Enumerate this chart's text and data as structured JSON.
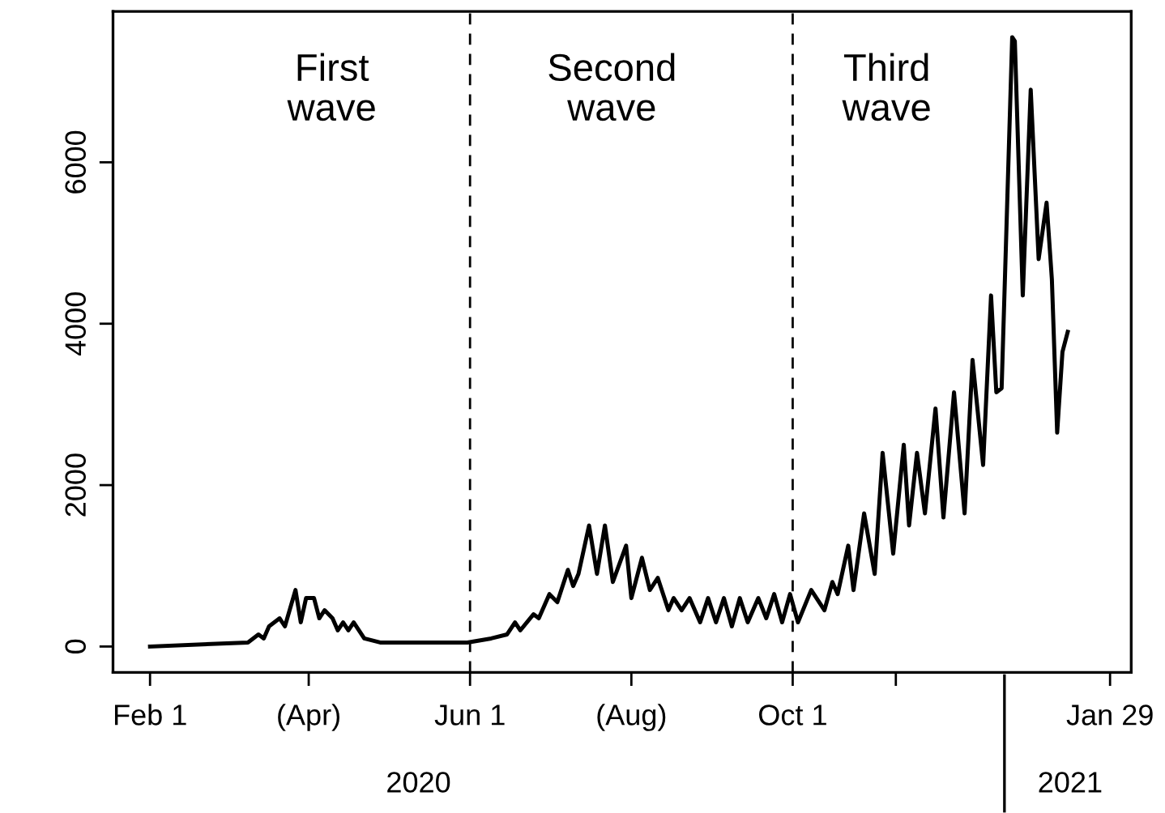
{
  "chart_data": {
    "type": "line",
    "color": "#000000",
    "line_style": "solid",
    "marker": "none",
    "grid": false,
    "legend": false,
    "x": [
      "2020-02-01",
      "2020-03-09",
      "2020-03-13",
      "2020-03-15",
      "2020-03-17",
      "2020-03-21",
      "2020-03-23",
      "2020-03-27",
      "2020-03-29",
      "2020-03-31",
      "2020-04-03",
      "2020-04-05",
      "2020-04-07",
      "2020-04-10",
      "2020-04-12",
      "2020-04-14",
      "2020-04-16",
      "2020-04-18",
      "2020-04-22",
      "2020-04-28",
      "2020-05-19",
      "2020-05-31",
      "2020-06-09",
      "2020-06-15",
      "2020-06-18",
      "2020-06-20",
      "2020-06-25",
      "2020-06-27",
      "2020-07-01",
      "2020-07-04",
      "2020-07-08",
      "2020-07-10",
      "2020-07-12",
      "2020-07-16",
      "2020-07-19",
      "2020-07-22",
      "2020-07-25",
      "2020-07-30",
      "2020-08-01",
      "2020-08-05",
      "2020-08-08",
      "2020-08-11",
      "2020-08-15",
      "2020-08-17",
      "2020-08-20",
      "2020-08-23",
      "2020-08-27",
      "2020-08-30",
      "2020-09-02",
      "2020-09-05",
      "2020-09-08",
      "2020-09-11",
      "2020-09-14",
      "2020-09-18",
      "2020-09-21",
      "2020-09-24",
      "2020-09-27",
      "2020-09-30",
      "2020-10-03",
      "2020-10-08",
      "2020-10-13",
      "2020-10-16",
      "2020-10-18",
      "2020-10-22",
      "2020-10-24",
      "2020-10-28",
      "2020-11-01",
      "2020-11-04",
      "2020-11-08",
      "2020-11-12",
      "2020-11-14",
      "2020-11-17",
      "2020-11-20",
      "2020-11-24",
      "2020-11-27",
      "2020-12-01",
      "2020-12-05",
      "2020-12-08",
      "2020-12-12",
      "2020-12-15",
      "2020-12-17",
      "2020-12-19",
      "2020-12-23",
      "2020-12-24",
      "2020-12-27",
      "2020-12-30",
      "2021-01-02",
      "2021-01-05",
      "2021-01-07",
      "2021-01-09",
      "2021-01-11",
      "2021-01-13"
    ],
    "values": [
      0,
      50,
      150,
      100,
      250,
      350,
      250,
      700,
      300,
      600,
      600,
      350,
      450,
      350,
      200,
      300,
      200,
      300,
      100,
      50,
      50,
      50,
      100,
      150,
      300,
      200,
      400,
      350,
      650,
      550,
      950,
      750,
      900,
      1500,
      900,
      1500,
      800,
      1250,
      600,
      1100,
      700,
      850,
      450,
      600,
      450,
      600,
      300,
      600,
      300,
      600,
      250,
      600,
      300,
      600,
      350,
      650,
      300,
      650,
      300,
      700,
      450,
      800,
      650,
      1250,
      700,
      1650,
      900,
      2400,
      1150,
      2500,
      1500,
      2400,
      1650,
      2950,
      1600,
      3150,
      1650,
      3550,
      2250,
      4350,
      3150,
      3200,
      7550,
      7500,
      4350,
      6900,
      4800,
      5500,
      4550,
      2650,
      3650,
      3900
    ],
    "xlim": [
      "2020-01-18",
      "2021-02-06"
    ],
    "xticks": [
      {
        "value": "2020-02-01",
        "label": "Feb 1"
      },
      {
        "value": "2020-04-01",
        "label": "(Apr)"
      },
      {
        "value": "2020-06-01",
        "label": "Jun 1"
      },
      {
        "value": "2020-08-01",
        "label": "(Aug)"
      },
      {
        "value": "2020-10-01",
        "label": "Oct 1"
      },
      {
        "value": "2020-11-09",
        "label": null
      },
      {
        "value": "2021-01-29",
        "label": "Jan 29"
      }
    ],
    "ylim": [
      -320,
      7870
    ],
    "yticks": [
      0,
      2000,
      4000,
      6000
    ],
    "ref_lines": [
      {
        "axis": "x",
        "value": "2020-06-01",
        "line_style": "dashed",
        "color": "#000000"
      },
      {
        "axis": "x",
        "value": "2020-10-01",
        "line_style": "dashed",
        "color": "#000000"
      }
    ],
    "annotations": [
      "First\nwave",
      "Second\nwave",
      "Third\nwave",
      "2020",
      "2021"
    ]
  }
}
